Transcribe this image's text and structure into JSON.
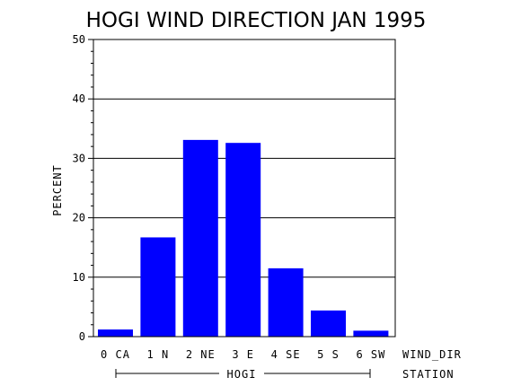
{
  "chart_data": {
    "type": "bar",
    "title": "HOGI WIND DIRECTION JAN 1995",
    "ylabel": "PERCENT",
    "xlabel": "WIND_DIR",
    "group_axis_label": "STATION",
    "group_label": "HOGI",
    "categories": [
      "0 CA",
      "1 N",
      "2 NE",
      "3 E",
      "4 SE",
      "5 S",
      "6 SW"
    ],
    "values": [
      1.2,
      16.7,
      33.1,
      32.6,
      11.5,
      4.4,
      1.0
    ],
    "ylim": [
      0,
      50
    ],
    "yticks": [
      "0",
      "10",
      "20",
      "30",
      "40",
      "50"
    ],
    "grid": true,
    "bar_color": "#0000ff"
  }
}
